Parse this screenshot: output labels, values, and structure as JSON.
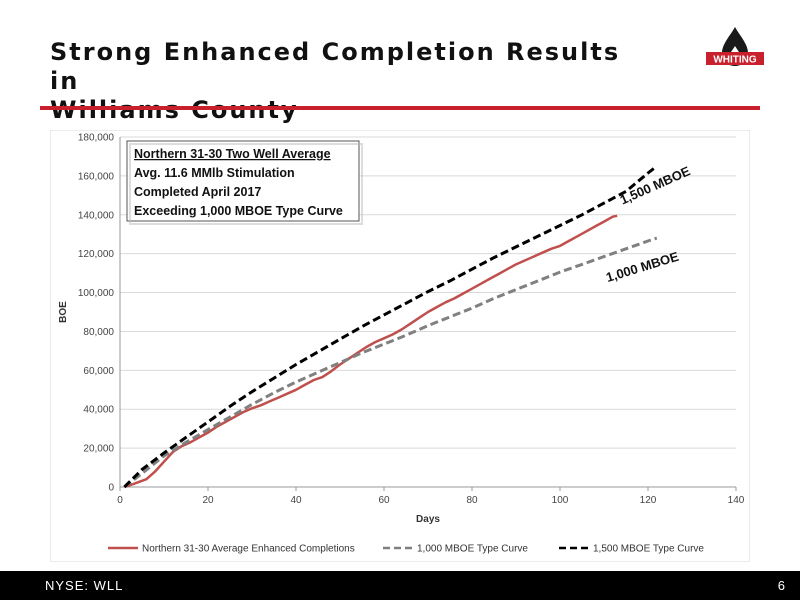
{
  "header": {
    "title_line1": "Strong Enhanced Completion Results in",
    "title_line2": "Williams County",
    "logo_text": "WHITING",
    "logo_icon": "oil-drop-icon",
    "accent_color": "#c8202c"
  },
  "footer": {
    "ticker": "NYSE: WLL",
    "page_number": "6"
  },
  "chart_data": {
    "type": "line",
    "xlabel": "Days",
    "ylabel": "BOE",
    "xlim": [
      0,
      140
    ],
    "ylim": [
      0,
      180000
    ],
    "x_ticks": [
      0,
      20,
      40,
      60,
      80,
      100,
      120,
      140
    ],
    "y_ticks": [
      0,
      20000,
      40000,
      60000,
      80000,
      100000,
      120000,
      140000,
      160000,
      180000
    ],
    "y_tick_labels": [
      "0",
      "20,000",
      "40,000",
      "60,000",
      "80,000",
      "100,000",
      "120,000",
      "140,000",
      "160,000",
      "180,000"
    ],
    "grid": "horizontal",
    "legend_position": "bottom",
    "series": [
      {
        "name": "Northern 31-30 Average Enhanced Completions",
        "color": "#c0504d",
        "dash": "solid",
        "x": [
          1,
          3,
          6,
          8,
          10,
          12,
          14,
          16,
          18,
          20,
          22,
          24,
          26,
          28,
          30,
          32,
          34,
          36,
          38,
          40,
          42,
          44,
          46,
          48,
          50,
          52,
          54,
          56,
          58,
          60,
          62,
          64,
          66,
          68,
          70,
          72,
          74,
          76,
          78,
          80,
          82,
          84,
          86,
          88,
          90,
          92,
          94,
          96,
          98,
          100,
          102,
          104,
          106,
          108,
          110,
          112,
          113
        ],
        "y": [
          0,
          1500,
          4000,
          8000,
          13000,
          18000,
          21000,
          23000,
          25500,
          28000,
          31000,
          33500,
          36000,
          38500,
          40500,
          42000,
          44000,
          46000,
          48000,
          50000,
          52500,
          55000,
          56500,
          59500,
          63000,
          66000,
          69000,
          72000,
          74500,
          76500,
          78500,
          81000,
          84000,
          87000,
          90000,
          92500,
          95000,
          97000,
          99500,
          102000,
          104500,
          107000,
          109500,
          112000,
          114500,
          116500,
          118500,
          120500,
          122500,
          124000,
          126500,
          129000,
          131500,
          134000,
          136500,
          139000,
          139500
        ]
      },
      {
        "name": "1,000 MBOE Type Curve",
        "color": "#808080",
        "dash": "dashed",
        "x": [
          1,
          5,
          10,
          15,
          20,
          25,
          30,
          35,
          40,
          45,
          50,
          55,
          60,
          65,
          70,
          75,
          80,
          85,
          90,
          95,
          100,
          105,
          110,
          115,
          120,
          122
        ],
        "y": [
          0,
          7000,
          16000,
          23000,
          29500,
          36000,
          42500,
          48500,
          54000,
          59000,
          64000,
          69000,
          73500,
          78000,
          83000,
          87500,
          92000,
          97000,
          101500,
          106000,
          110500,
          114500,
          118500,
          122500,
          126500,
          128000
        ]
      },
      {
        "name": "1,500 MBOE Type Curve",
        "color": "#000000",
        "dash": "dashed",
        "x": [
          1,
          5,
          10,
          15,
          20,
          25,
          30,
          35,
          40,
          45,
          50,
          55,
          60,
          65,
          70,
          75,
          80,
          85,
          90,
          95,
          100,
          105,
          110,
          115,
          120,
          122
        ],
        "y": [
          0,
          9000,
          17500,
          25500,
          33500,
          41500,
          49000,
          56000,
          63000,
          69500,
          76000,
          82500,
          88500,
          94500,
          100500,
          106000,
          112000,
          118000,
          123500,
          129000,
          134500,
          140000,
          146000,
          152000,
          161500,
          165000
        ]
      }
    ],
    "annotation_box": {
      "line1": "Northern 31-30 Two Well Average",
      "line2": "Avg. 11.6 MMlb Stimulation",
      "line3": "Completed April 2017",
      "line4": "Exceeding 1,000 MBOE Type Curve"
    },
    "curve_labels": [
      {
        "text": "1,500 MBOE",
        "x": 122,
        "y": 153000
      },
      {
        "text": "1,000 MBOE",
        "x": 119,
        "y": 111000
      }
    ]
  }
}
